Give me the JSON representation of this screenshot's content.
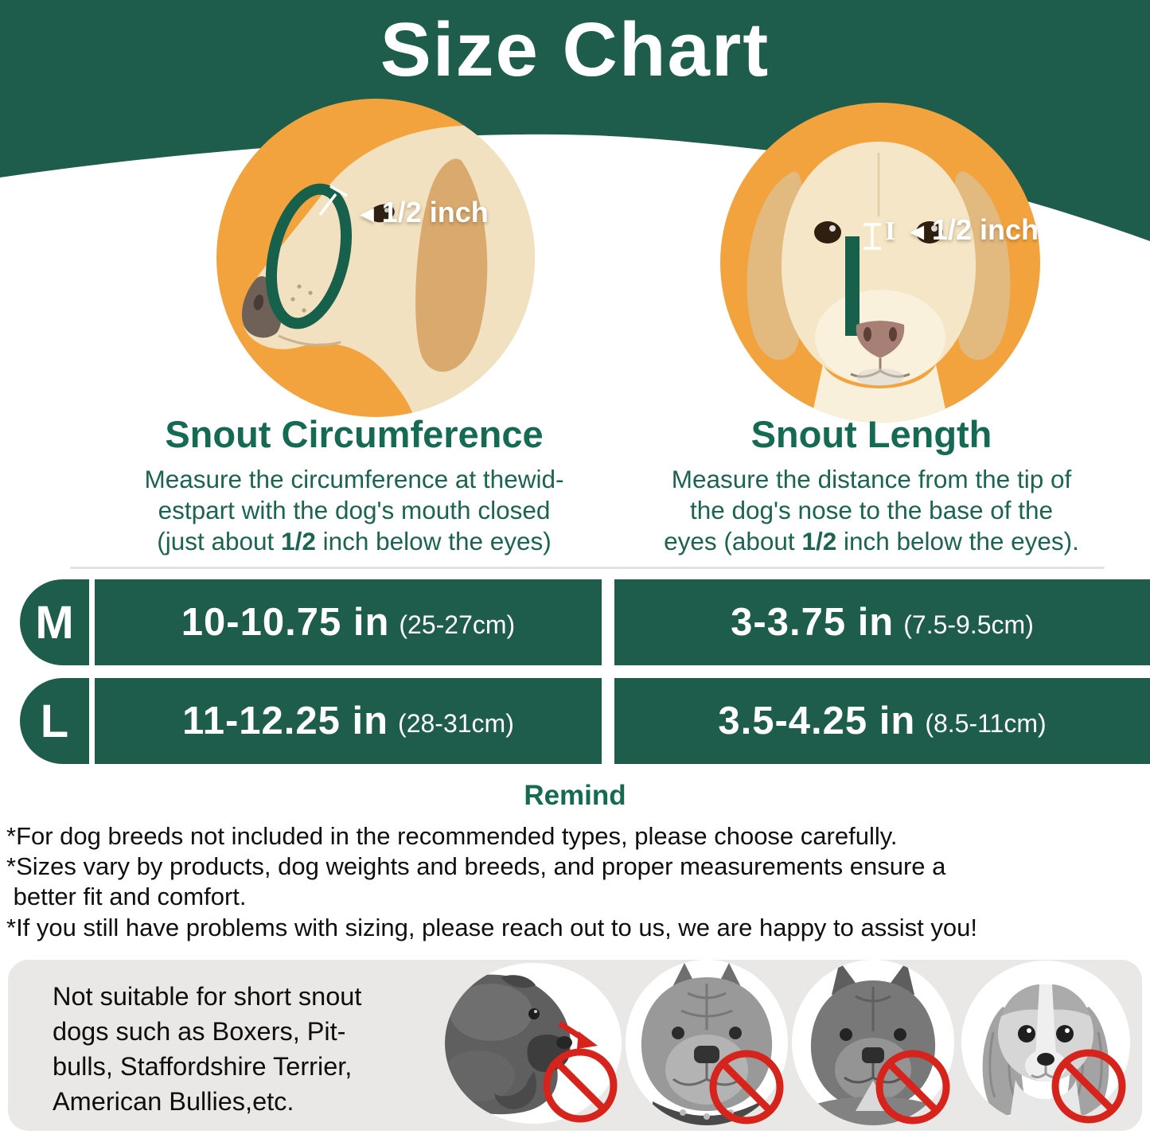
{
  "title": "Size Chart",
  "colors": {
    "header_green": "#1e5c4c",
    "heading_text_green": "#156a53",
    "marker_green": "#17604b",
    "orange_circle": "#f3a33d",
    "prohibit_red": "#d6231c",
    "panel_gray": "#e9e8e6",
    "text_black": "#0f0f0f",
    "white": "#ffffff"
  },
  "figures": [
    {
      "heading": "Snout Circumference",
      "pointer": "◄",
      "cap": "",
      "label": "1/2 inch",
      "desc": [
        {
          "pre": "Measure the circumference at thewid-"
        },
        {
          "pre": "estpart with the dog's mouth closed"
        },
        {
          "pre": "(just about ",
          "bold": "1/2",
          "post": " inch below the eyes)"
        }
      ]
    },
    {
      "heading": "Snout Length",
      "pointer": "◄",
      "cap": "I",
      "label": "1/2 inch",
      "desc": [
        {
          "pre": "Measure the distance from the tip of"
        },
        {
          "pre": "the dog's nose to the base of the"
        },
        {
          "pre": "eyes (about ",
          "bold": "1/2",
          "post": " inch below the eyes)."
        }
      ]
    }
  ],
  "table": {
    "rows": [
      {
        "size": "M",
        "circumference_in": "10-10.75 in",
        "circumference_cm": "(25-27cm)",
        "length_in": "3-3.75 in",
        "length_cm": "(7.5-9.5cm)"
      },
      {
        "size": "L",
        "circumference_in": "11-12.25 in",
        "circumference_cm": "(28-31cm)",
        "length_in": "3.5-4.25 in",
        "length_cm": "(8.5-11cm)"
      }
    ]
  },
  "remind": {
    "title": "Remind",
    "notes": [
      "*For dog breeds not included in the recommended types, please choose carefully.",
      "*Sizes vary by products, dog weights and breeds, and proper measurements ensure a",
      " better fit and comfort.",
      "*If you still have problems with sizing, please reach out to us, we are happy to assist you!"
    ]
  },
  "warning": {
    "lines": [
      "Not suitable for short snout",
      "dogs such as Boxers, Pit-",
      "bulls, Staffordshire Terrier,",
      "American Bullies,etc."
    ],
    "excluded_breeds": [
      "boxer",
      "pitbull",
      "staffordshire-terrier",
      "cavalier-spaniel"
    ]
  }
}
